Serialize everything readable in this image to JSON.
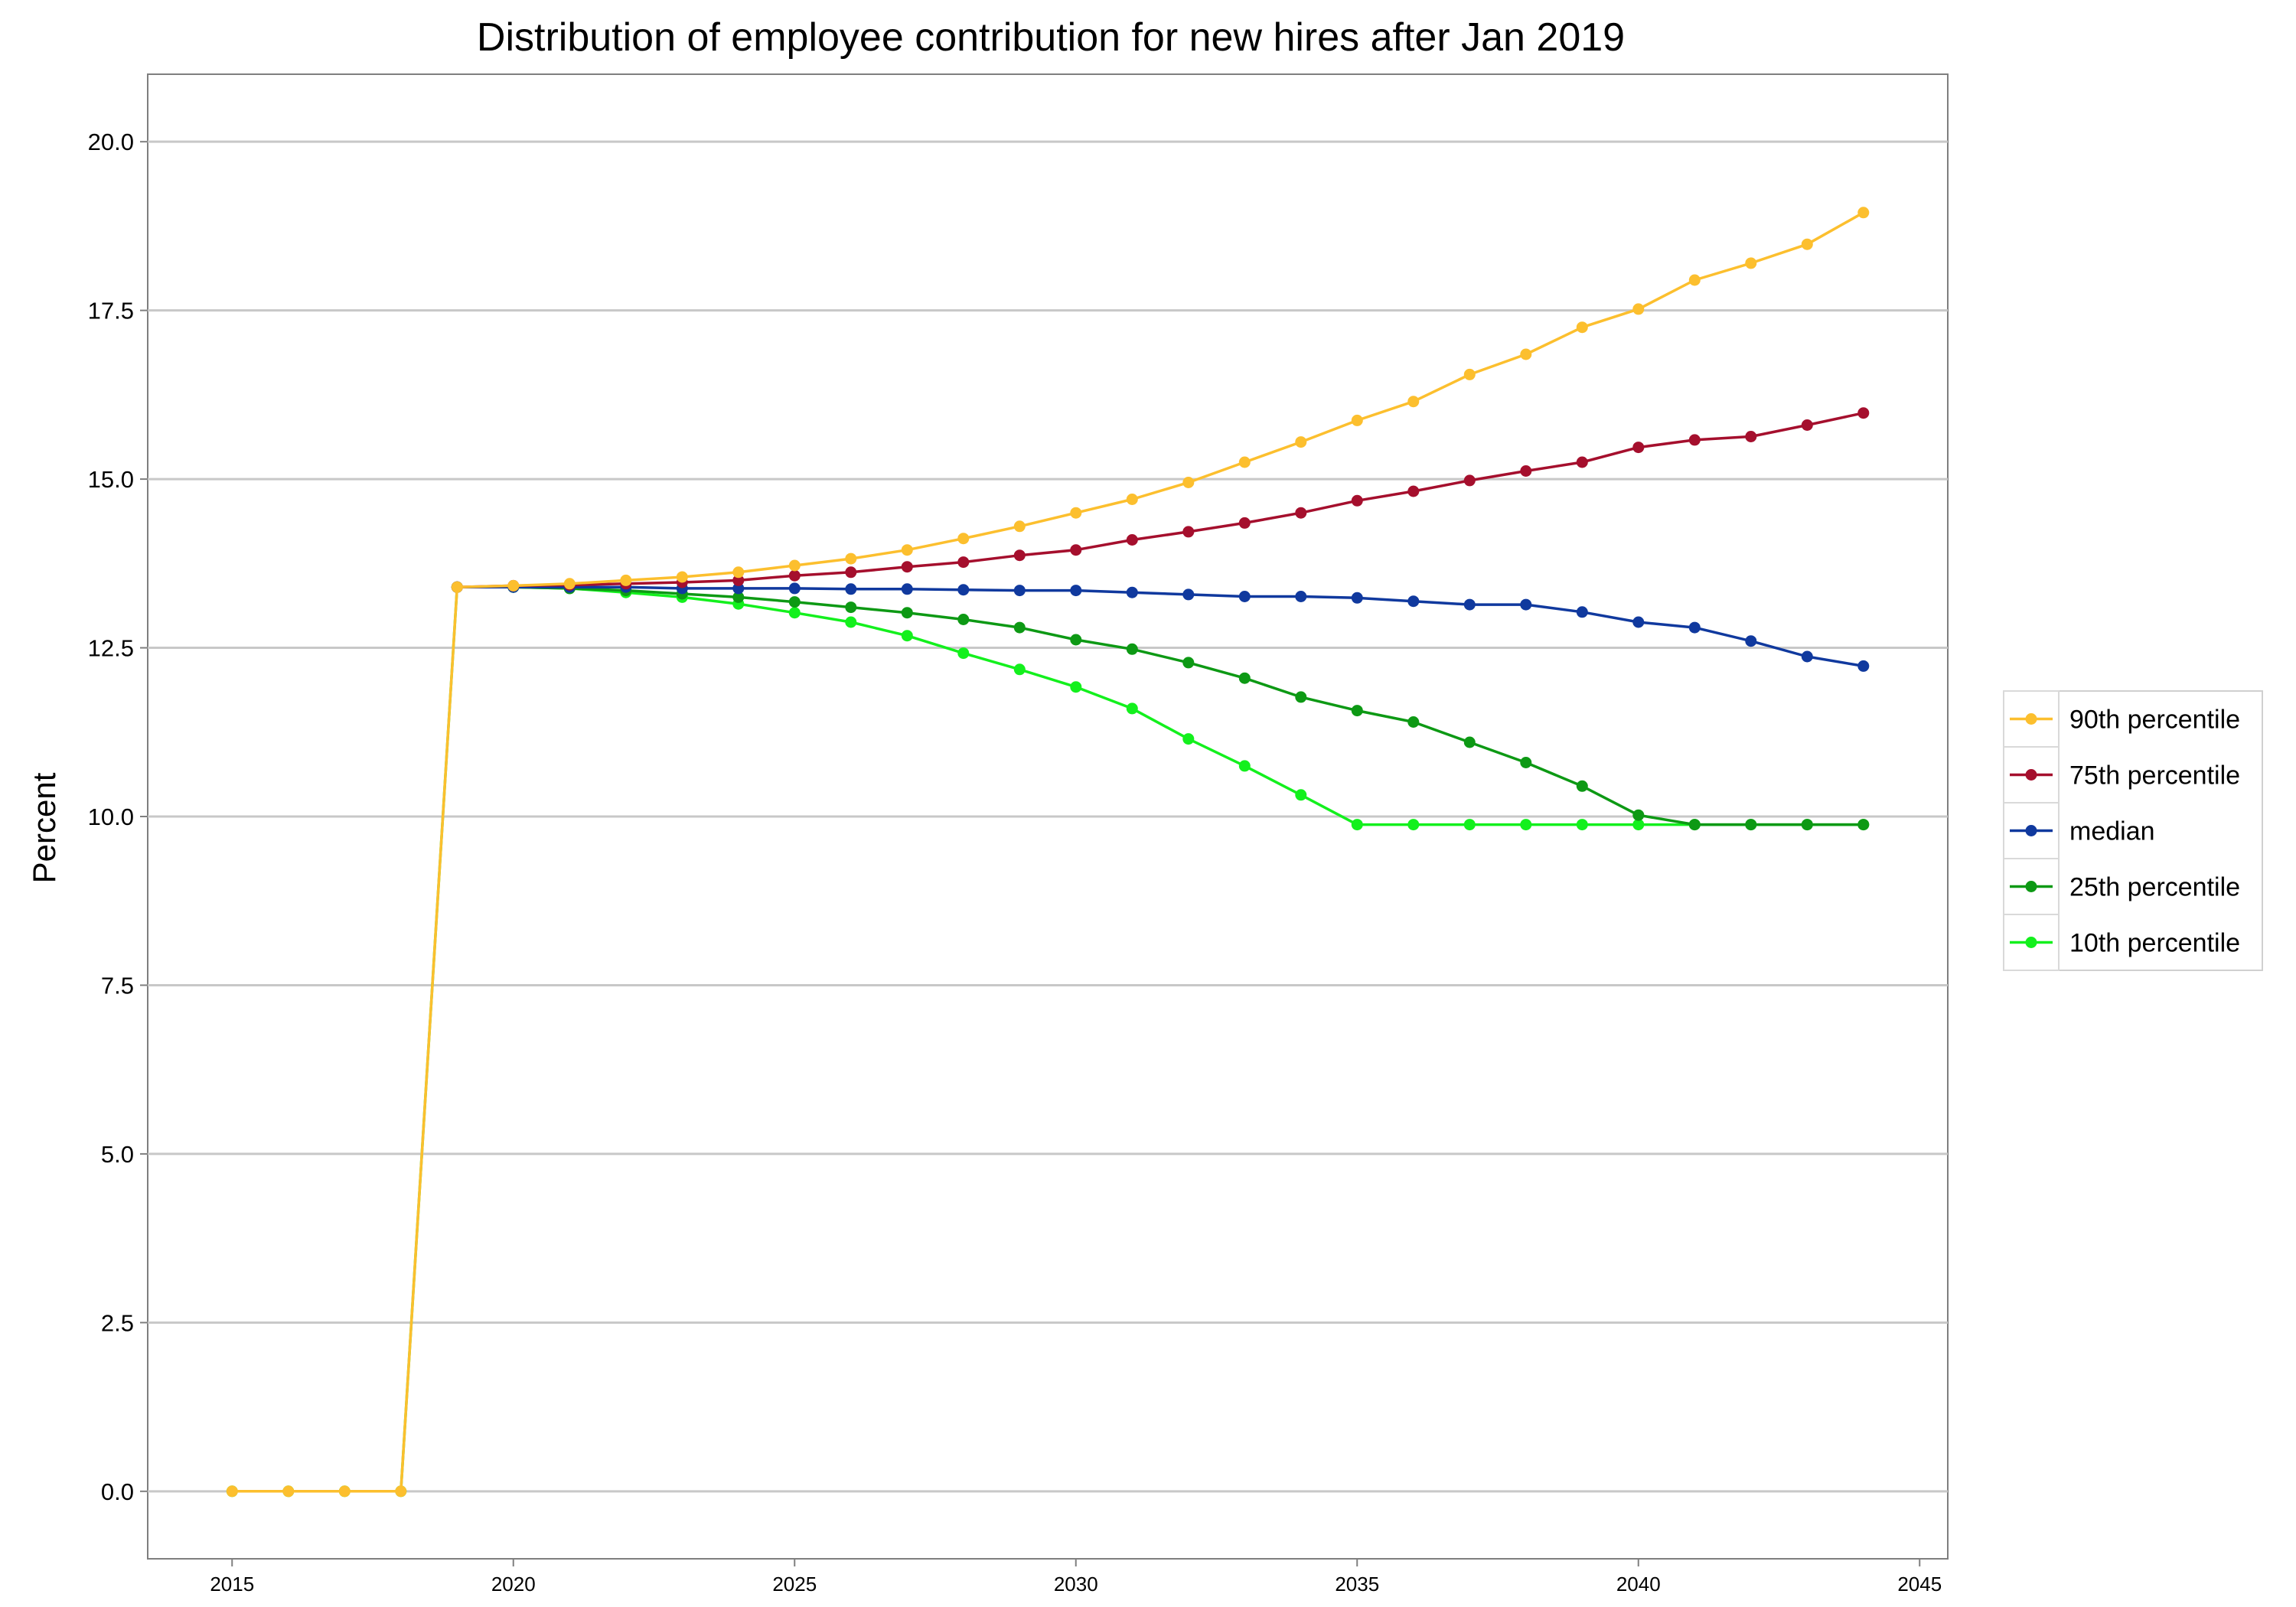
{
  "chart_data": {
    "type": "line",
    "title": "Distribution of employee contribution for new hires after Jan 2019",
    "xlabel": "",
    "ylabel": "Percent",
    "xlim": [
      2013.5,
      2045.5
    ],
    "ylim": [
      -1,
      21
    ],
    "x_ticks": [
      2015,
      2020,
      2025,
      2030,
      2035,
      2040,
      2045
    ],
    "y_ticks": [
      0,
      2.5,
      5,
      7.5,
      10,
      12.5,
      15,
      17.5,
      20
    ],
    "y_tick_labels": [
      "0.0",
      "2.5",
      "5.0",
      "7.5",
      "10.0",
      "12.5",
      "15.0",
      "17.5",
      "20.0"
    ],
    "grid": "horizontal",
    "legend_position": "right",
    "x": [
      2015,
      2016,
      2017,
      2018,
      2019,
      2020,
      2021,
      2022,
      2023,
      2024,
      2025,
      2026,
      2027,
      2028,
      2029,
      2030,
      2031,
      2032,
      2033,
      2034,
      2035,
      2036,
      2037,
      2038,
      2039,
      2040,
      2041,
      2042,
      2043,
      2044
    ],
    "series": [
      {
        "name": "90th percentile",
        "color": "#FCBF2E",
        "values": [
          0,
          0,
          0,
          0,
          13.4,
          13.42,
          13.45,
          13.5,
          13.55,
          13.62,
          13.72,
          13.82,
          13.95,
          14.12,
          14.3,
          14.5,
          14.7,
          14.95,
          15.25,
          15.55,
          15.87,
          16.15,
          16.55,
          16.85,
          17.25,
          17.52,
          17.95,
          18.2,
          18.48,
          18.95
        ]
      },
      {
        "name": "75th percentile",
        "color": "#A50F2D",
        "values": [
          null,
          null,
          null,
          null,
          13.4,
          13.42,
          13.43,
          13.45,
          13.47,
          13.5,
          13.57,
          13.62,
          13.7,
          13.77,
          13.87,
          13.95,
          14.1,
          14.22,
          14.35,
          14.5,
          14.68,
          14.82,
          14.98,
          15.12,
          15.25,
          15.47,
          15.58,
          15.63,
          15.8,
          15.98
        ]
      },
      {
        "name": "median",
        "color": "#10399E",
        "values": [
          null,
          null,
          null,
          null,
          13.4,
          13.4,
          13.4,
          13.4,
          13.38,
          13.38,
          13.38,
          13.37,
          13.37,
          13.36,
          13.35,
          13.35,
          13.32,
          13.29,
          13.26,
          13.26,
          13.24,
          13.19,
          13.14,
          13.14,
          13.03,
          12.88,
          12.8,
          12.6,
          12.37,
          12.23
        ]
      },
      {
        "name": "25th percentile",
        "color": "#0D9914",
        "values": [
          null,
          null,
          null,
          null,
          13.4,
          13.4,
          13.38,
          13.35,
          13.3,
          13.25,
          13.18,
          13.1,
          13.02,
          12.92,
          12.8,
          12.62,
          12.48,
          12.28,
          12.05,
          11.77,
          11.57,
          11.4,
          11.1,
          10.8,
          10.45,
          10.02,
          9.88,
          9.88,
          9.88,
          9.88
        ]
      },
      {
        "name": "10th percentile",
        "color": "#13F01D",
        "values": [
          0,
          0,
          0,
          0,
          13.4,
          13.4,
          13.38,
          13.32,
          13.25,
          13.15,
          13.02,
          12.88,
          12.68,
          12.42,
          12.18,
          11.92,
          11.6,
          11.15,
          10.75,
          10.32,
          9.88,
          9.88,
          9.88,
          9.88,
          9.88,
          9.88,
          9.88,
          9.88,
          9.88,
          9.88
        ]
      }
    ]
  }
}
